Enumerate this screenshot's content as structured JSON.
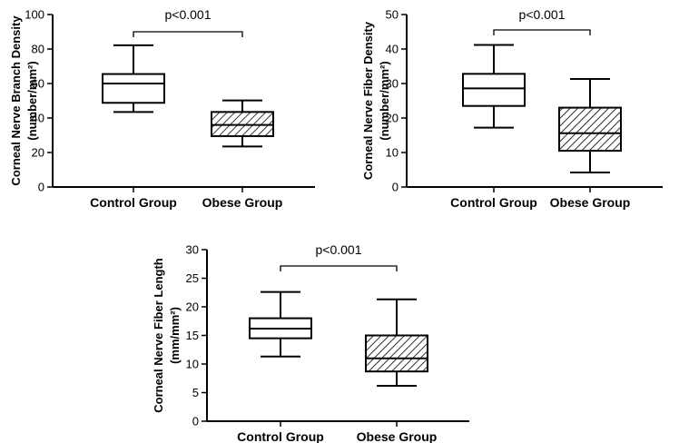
{
  "chart_data": [
    {
      "type": "boxplot",
      "ylabel_line1": "Corneal Nerve Branch  Density",
      "ylabel_line2": "(number/mm²)",
      "ylim": [
        0,
        100
      ],
      "yticks": [
        0,
        20,
        40,
        60,
        80,
        100
      ],
      "ytick_labels": [
        "0",
        "20",
        "40",
        "60",
        "80",
        "100"
      ],
      "categories": [
        "Control Group",
        "Obese Group"
      ],
      "boxes": [
        {
          "name": "Control Group",
          "whisker_low": 43.5,
          "q1": 48.8,
          "median": 60,
          "q3": 65.5,
          "whisker_high": 82.2,
          "pattern": "none"
        },
        {
          "name": "Obese Group",
          "whisker_low": 23.5,
          "q1": 29.5,
          "median": 36,
          "q3": 43.5,
          "whisker_high": 50.2,
          "pattern": "hatch"
        }
      ],
      "annotation": "p<0.001"
    },
    {
      "type": "boxplot",
      "ylabel_line1": "Corneal Nerve Fiber  Density",
      "ylabel_line2": "(number/mm²)",
      "ylim": [
        0,
        50
      ],
      "yticks": [
        0,
        10,
        20,
        30,
        40,
        50
      ],
      "ytick_labels": [
        "0",
        "10",
        "20",
        "30",
        "40",
        "50"
      ],
      "categories": [
        "Control Group",
        "Obese Group"
      ],
      "boxes": [
        {
          "name": "Control Group",
          "whisker_low": 17.2,
          "q1": 23.5,
          "median": 28.6,
          "q3": 32.8,
          "whisker_high": 41.2,
          "pattern": "none"
        },
        {
          "name": "Obese Group",
          "whisker_low": 4.2,
          "q1": 10.5,
          "median": 15.6,
          "q3": 23,
          "whisker_high": 31.3,
          "pattern": "hatch"
        }
      ],
      "annotation": "p<0.001"
    },
    {
      "type": "boxplot",
      "ylabel_line1": "Corneal Nerve Fiber  Length",
      "ylabel_line2": "(mm/mm²)",
      "ylim": [
        0,
        30
      ],
      "yticks": [
        0,
        5,
        10,
        15,
        20,
        25,
        30
      ],
      "ytick_labels": [
        "0",
        "5",
        "10",
        "15",
        "20",
        "25",
        "30"
      ],
      "categories": [
        "Control Group",
        "Obese Group"
      ],
      "boxes": [
        {
          "name": "Control Group",
          "whisker_low": 11.3,
          "q1": 14.5,
          "median": 16.2,
          "q3": 18,
          "whisker_high": 22.6,
          "pattern": "none"
        },
        {
          "name": "Obese Group",
          "whisker_low": 6.2,
          "q1": 8.7,
          "median": 11,
          "q3": 15,
          "whisker_high": 21.3,
          "pattern": "hatch"
        }
      ],
      "annotation": "p<0.001"
    }
  ]
}
